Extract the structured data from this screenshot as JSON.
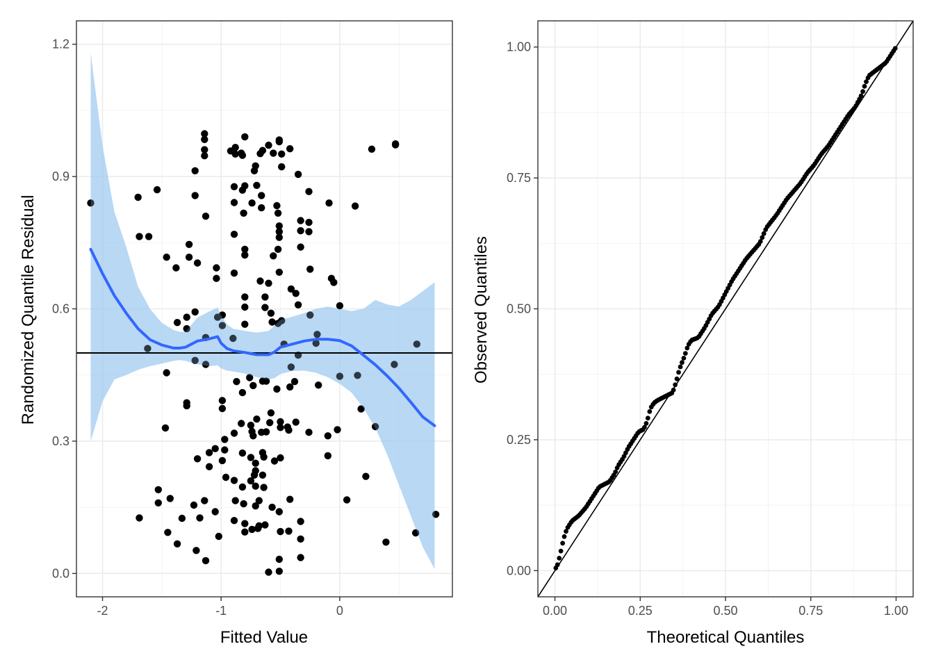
{
  "colors": {
    "background": "#ffffff",
    "grid": "#ebebeb",
    "points": "#000000",
    "smooth_line": "#3366FF",
    "ribbon": "#9ec9f0",
    "reference_line": "#000000"
  },
  "chart_data": [
    {
      "type": "scatter",
      "title": "",
      "xlabel": "Fitted Value",
      "ylabel": "Randomized Quantile Residual",
      "xlim": [
        -2.22,
        0.95
      ],
      "ylim": [
        -0.053,
        1.253
      ],
      "x_ticks": [
        -2,
        -1,
        0
      ],
      "x_tick_labels": [
        "-2",
        "-1",
        "0"
      ],
      "y_ticks": [
        0.0,
        0.3,
        0.6,
        0.9,
        1.2
      ],
      "y_tick_labels": [
        "0.0",
        "0.3",
        "0.6",
        "0.9",
        "1.2"
      ],
      "grid": true,
      "reference_line": {
        "y": 0.5
      },
      "points": [
        [
          -2.1,
          0.84
        ],
        [
          -1.7,
          0.853
        ],
        [
          -1.69,
          0.764
        ],
        [
          -1.61,
          0.764
        ],
        [
          -1.54,
          0.87
        ],
        [
          -1.62,
          0.51
        ],
        [
          -1.46,
          0.717
        ],
        [
          -1.38,
          0.693
        ],
        [
          -1.37,
          0.569
        ],
        [
          -1.29,
          0.581
        ],
        [
          -1.29,
          0.555
        ],
        [
          -1.27,
          0.717
        ],
        [
          -1.27,
          0.746
        ],
        [
          -1.22,
          0.913
        ],
        [
          -1.22,
          0.857
        ],
        [
          -1.22,
          0.593
        ],
        [
          -1.2,
          0.704
        ],
        [
          -1.14,
          0.997
        ],
        [
          -1.14,
          0.984
        ],
        [
          -1.14,
          0.961
        ],
        [
          -1.14,
          0.947
        ],
        [
          -1.13,
          0.81
        ],
        [
          -1.13,
          0.535
        ],
        [
          -1.04,
          0.693
        ],
        [
          -1.04,
          0.669
        ],
        [
          -1.03,
          0.581
        ],
        [
          -0.99,
          0.586
        ],
        [
          -0.99,
          0.562
        ],
        [
          -0.92,
          0.958
        ],
        [
          -0.88,
          0.951
        ],
        [
          -0.88,
          0.966
        ],
        [
          -0.89,
          0.877
        ],
        [
          -0.89,
          0.841
        ],
        [
          -0.89,
          0.769
        ],
        [
          -0.89,
          0.681
        ],
        [
          -0.9,
          0.533
        ],
        [
          -0.83,
          0.953
        ],
        [
          -0.8,
          0.99
        ],
        [
          -0.82,
          0.948
        ],
        [
          -0.82,
          0.869
        ],
        [
          -0.8,
          0.879
        ],
        [
          -0.81,
          0.817
        ],
        [
          -0.8,
          0.735
        ],
        [
          -0.8,
          0.722
        ],
        [
          -0.8,
          0.627
        ],
        [
          -0.8,
          0.604
        ],
        [
          -0.8,
          0.565
        ],
        [
          -0.71,
          0.924
        ],
        [
          -0.72,
          0.913
        ],
        [
          -0.7,
          0.88
        ],
        [
          -0.66,
          0.857
        ],
        [
          -0.66,
          0.829
        ],
        [
          -0.74,
          0.84
        ],
        [
          -0.67,
          0.952
        ],
        [
          -0.65,
          0.959
        ],
        [
          -0.6,
          0.971
        ],
        [
          -0.51,
          0.983
        ],
        [
          -0.51,
          0.979
        ],
        [
          -0.56,
          0.953
        ],
        [
          -0.42,
          0.963
        ],
        [
          -0.49,
          0.951
        ],
        [
          -0.49,
          0.922
        ],
        [
          -0.35,
          0.905
        ],
        [
          -0.53,
          0.834
        ],
        [
          -0.52,
          0.817
        ],
        [
          -0.51,
          0.788
        ],
        [
          -0.51,
          0.775
        ],
        [
          -0.51,
          0.762
        ],
        [
          -0.52,
          0.735
        ],
        [
          -0.56,
          0.72
        ],
        [
          -0.51,
          0.683
        ],
        [
          -0.26,
          0.866
        ],
        [
          -0.33,
          0.8
        ],
        [
          -0.26,
          0.796
        ],
        [
          -0.33,
          0.777
        ],
        [
          -0.26,
          0.775
        ],
        [
          -0.33,
          0.74
        ],
        [
          -0.09,
          0.84
        ],
        [
          -0.05,
          0.66
        ],
        [
          -0.07,
          0.669
        ],
        [
          -0.25,
          0.69
        ],
        [
          -0.37,
          0.635
        ],
        [
          -0.41,
          0.645
        ],
        [
          -0.35,
          0.609
        ],
        [
          -0.6,
          0.658
        ],
        [
          -0.63,
          0.627
        ],
        [
          -0.63,
          0.603
        ],
        [
          -0.67,
          0.663
        ],
        [
          -0.58,
          0.59
        ],
        [
          -0.49,
          0.573
        ],
        [
          -0.57,
          0.57
        ],
        [
          -0.52,
          0.567
        ],
        [
          -0.47,
          0.52
        ],
        [
          -0.41,
          0.468
        ],
        [
          -0.35,
          0.495
        ],
        [
          -0.25,
          0.586
        ],
        [
          -0.19,
          0.542
        ],
        [
          -0.2,
          0.522
        ],
        [
          -0.18,
          0.427
        ],
        [
          0.0,
          0.607
        ],
        [
          0.0,
          0.447
        ],
        [
          0.15,
          0.449
        ],
        [
          0.13,
          0.833
        ],
        [
          0.27,
          0.962
        ],
        [
          0.47,
          0.974
        ],
        [
          0.47,
          0.972
        ],
        [
          0.46,
          0.474
        ],
        [
          0.65,
          0.52
        ],
        [
          -1.46,
          0.455
        ],
        [
          -1.22,
          0.483
        ],
        [
          -1.13,
          0.474
        ],
        [
          -0.87,
          0.435
        ],
        [
          -0.76,
          0.444
        ],
        [
          -0.73,
          0.426
        ],
        [
          -0.65,
          0.436
        ],
        [
          -0.62,
          0.436
        ],
        [
          -0.38,
          0.435
        ],
        [
          -0.82,
          0.41
        ],
        [
          -0.53,
          0.418
        ],
        [
          -0.42,
          0.423
        ],
        [
          -0.99,
          0.392
        ],
        [
          -0.99,
          0.374
        ],
        [
          -1.29,
          0.387
        ],
        [
          -1.29,
          0.38
        ],
        [
          -0.58,
          0.364
        ],
        [
          -0.59,
          0.342
        ],
        [
          -0.62,
          0.321
        ],
        [
          -0.66,
          0.32
        ],
        [
          -0.7,
          0.35
        ],
        [
          -0.75,
          0.336
        ],
        [
          -0.74,
          0.322
        ],
        [
          -0.73,
          0.312
        ],
        [
          -0.83,
          0.34
        ],
        [
          -0.89,
          0.318
        ],
        [
          -0.5,
          0.331
        ],
        [
          -0.5,
          0.344
        ],
        [
          -0.44,
          0.332
        ],
        [
          -0.43,
          0.325
        ],
        [
          -0.37,
          0.343
        ],
        [
          -0.26,
          0.32
        ],
        [
          -0.1,
          0.312
        ],
        [
          -0.02,
          0.326
        ],
        [
          0.18,
          0.373
        ],
        [
          0.3,
          0.333
        ],
        [
          -1.47,
          0.33
        ],
        [
          -1.2,
          0.26
        ],
        [
          -1.1,
          0.274
        ],
        [
          -1.05,
          0.283
        ],
        [
          -1.1,
          0.242
        ],
        [
          -0.99,
          0.256
        ],
        [
          -0.97,
          0.28
        ],
        [
          -0.97,
          0.304
        ],
        [
          -0.82,
          0.273
        ],
        [
          -0.75,
          0.263
        ],
        [
          -0.71,
          0.25
        ],
        [
          -0.65,
          0.274
        ],
        [
          -0.64,
          0.264
        ],
        [
          -0.55,
          0.255
        ],
        [
          -0.5,
          0.262
        ],
        [
          -0.1,
          0.267
        ],
        [
          0.22,
          0.22
        ],
        [
          -1.53,
          0.19
        ],
        [
          -1.53,
          0.16
        ],
        [
          -1.43,
          0.17
        ],
        [
          -1.23,
          0.155
        ],
        [
          -1.14,
          0.165
        ],
        [
          -1.05,
          0.14
        ],
        [
          -0.96,
          0.218
        ],
        [
          -0.89,
          0.211
        ],
        [
          -0.82,
          0.196
        ],
        [
          -0.75,
          0.21
        ],
        [
          -0.71,
          0.233
        ],
        [
          -0.72,
          0.223
        ],
        [
          -0.71,
          0.198
        ],
        [
          -0.65,
          0.223
        ],
        [
          -0.64,
          0.195
        ],
        [
          -0.68,
          0.165
        ],
        [
          -0.71,
          0.153
        ],
        [
          -0.81,
          0.158
        ],
        [
          -0.88,
          0.165
        ],
        [
          -0.57,
          0.15
        ],
        [
          -0.51,
          0.14
        ],
        [
          -0.42,
          0.168
        ],
        [
          0.06,
          0.167
        ],
        [
          -1.69,
          0.126
        ],
        [
          -1.33,
          0.125
        ],
        [
          -1.18,
          0.126
        ],
        [
          -0.89,
          0.12
        ],
        [
          -0.8,
          0.113
        ],
        [
          -0.74,
          0.1
        ],
        [
          -0.69,
          0.102
        ],
        [
          -0.68,
          0.108
        ],
        [
          -0.63,
          0.11
        ],
        [
          -0.5,
          0.095
        ],
        [
          -0.43,
          0.096
        ],
        [
          -0.33,
          0.118
        ],
        [
          -0.33,
          0.078
        ],
        [
          -1.45,
          0.093
        ],
        [
          -1.37,
          0.067
        ],
        [
          -1.21,
          0.052
        ],
        [
          -1.13,
          0.029
        ],
        [
          -1.02,
          0.084
        ],
        [
          -0.8,
          0.094
        ],
        [
          -0.51,
          0.032
        ],
        [
          -0.6,
          0.003
        ],
        [
          -0.51,
          0.005
        ],
        [
          -0.33,
          0.036
        ],
        [
          0.39,
          0.071
        ],
        [
          0.64,
          0.092
        ],
        [
          0.81,
          0.134
        ]
      ],
      "smooth": {
        "x": [
          -2.1,
          -2.0,
          -1.9,
          -1.8,
          -1.7,
          -1.6,
          -1.5,
          -1.4,
          -1.35,
          -1.3,
          -1.2,
          -1.1,
          -1.03,
          -1.0,
          -0.95,
          -0.9,
          -0.8,
          -0.7,
          -0.6,
          -0.55,
          -0.5,
          -0.4,
          -0.3,
          -0.2,
          -0.1,
          0.0,
          0.1,
          0.2,
          0.3,
          0.4,
          0.5,
          0.6,
          0.7,
          0.8
        ],
        "y": [
          0.735,
          0.68,
          0.63,
          0.59,
          0.555,
          0.53,
          0.518,
          0.511,
          0.511,
          0.513,
          0.527,
          0.532,
          0.537,
          0.522,
          0.51,
          0.505,
          0.501,
          0.496,
          0.496,
          0.502,
          0.513,
          0.52,
          0.527,
          0.531,
          0.531,
          0.528,
          0.516,
          0.495,
          0.473,
          0.448,
          0.42,
          0.388,
          0.355,
          0.335
        ],
        "lower": [
          0.3,
          0.39,
          0.44,
          0.45,
          0.462,
          0.47,
          0.476,
          0.482,
          0.484,
          0.482,
          0.474,
          0.47,
          0.472,
          0.465,
          0.46,
          0.458,
          0.453,
          0.445,
          0.44,
          0.443,
          0.452,
          0.459,
          0.46,
          0.455,
          0.445,
          0.43,
          0.41,
          0.375,
          0.33,
          0.27,
          0.2,
          0.13,
          0.06,
          0.01
        ],
        "upper": [
          1.18,
          0.97,
          0.82,
          0.74,
          0.65,
          0.6,
          0.568,
          0.552,
          0.548,
          0.548,
          0.58,
          0.594,
          0.603,
          0.585,
          0.565,
          0.555,
          0.55,
          0.546,
          0.55,
          0.562,
          0.575,
          0.582,
          0.59,
          0.6,
          0.605,
          0.6,
          0.595,
          0.6,
          0.62,
          0.61,
          0.605,
          0.62,
          0.64,
          0.66
        ]
      }
    },
    {
      "type": "scatter",
      "title": "",
      "xlabel": "Theoretical Quantiles",
      "ylabel": "Observed Quantiles",
      "xlim": [
        -0.05,
        1.05
      ],
      "ylim": [
        -0.05,
        1.05
      ],
      "x_ticks": [
        0.0,
        0.25,
        0.5,
        0.75,
        1.0
      ],
      "x_tick_labels": [
        "0.00",
        "0.25",
        "0.50",
        "0.75",
        "1.00"
      ],
      "y_ticks": [
        0.0,
        0.25,
        0.5,
        0.75,
        1.0
      ],
      "y_tick_labels": [
        "0.00",
        "0.25",
        "0.50",
        "0.75",
        "1.00"
      ],
      "grid": true,
      "reference_line": {
        "slope": 1,
        "intercept": 0
      },
      "qq_path": {
        "x": [
          0.005,
          0.015,
          0.025,
          0.035,
          0.05,
          0.07,
          0.09,
          0.11,
          0.13,
          0.145,
          0.16,
          0.175,
          0.185,
          0.2,
          0.215,
          0.23,
          0.245,
          0.26,
          0.27,
          0.28,
          0.29,
          0.3,
          0.315,
          0.33,
          0.345,
          0.355,
          0.365,
          0.38,
          0.39,
          0.4,
          0.42,
          0.44,
          0.46,
          0.48,
          0.5,
          0.52,
          0.54,
          0.56,
          0.58,
          0.6,
          0.62,
          0.65,
          0.68,
          0.7,
          0.72,
          0.74,
          0.76,
          0.78,
          0.8,
          0.82,
          0.84,
          0.86,
          0.88,
          0.9,
          0.91,
          0.92,
          0.93,
          0.95,
          0.97,
          0.99,
          1.0
        ],
        "y": [
          0.005,
          0.03,
          0.06,
          0.08,
          0.095,
          0.105,
          0.12,
          0.14,
          0.16,
          0.165,
          0.17,
          0.185,
          0.2,
          0.215,
          0.235,
          0.25,
          0.265,
          0.27,
          0.285,
          0.31,
          0.32,
          0.325,
          0.33,
          0.335,
          0.34,
          0.36,
          0.385,
          0.41,
          0.43,
          0.44,
          0.445,
          0.465,
          0.49,
          0.505,
          0.53,
          0.555,
          0.575,
          0.595,
          0.61,
          0.625,
          0.655,
          0.68,
          0.71,
          0.725,
          0.74,
          0.76,
          0.775,
          0.795,
          0.81,
          0.83,
          0.85,
          0.87,
          0.885,
          0.91,
          0.93,
          0.945,
          0.95,
          0.96,
          0.97,
          0.99,
          1.0
        ]
      }
    }
  ]
}
